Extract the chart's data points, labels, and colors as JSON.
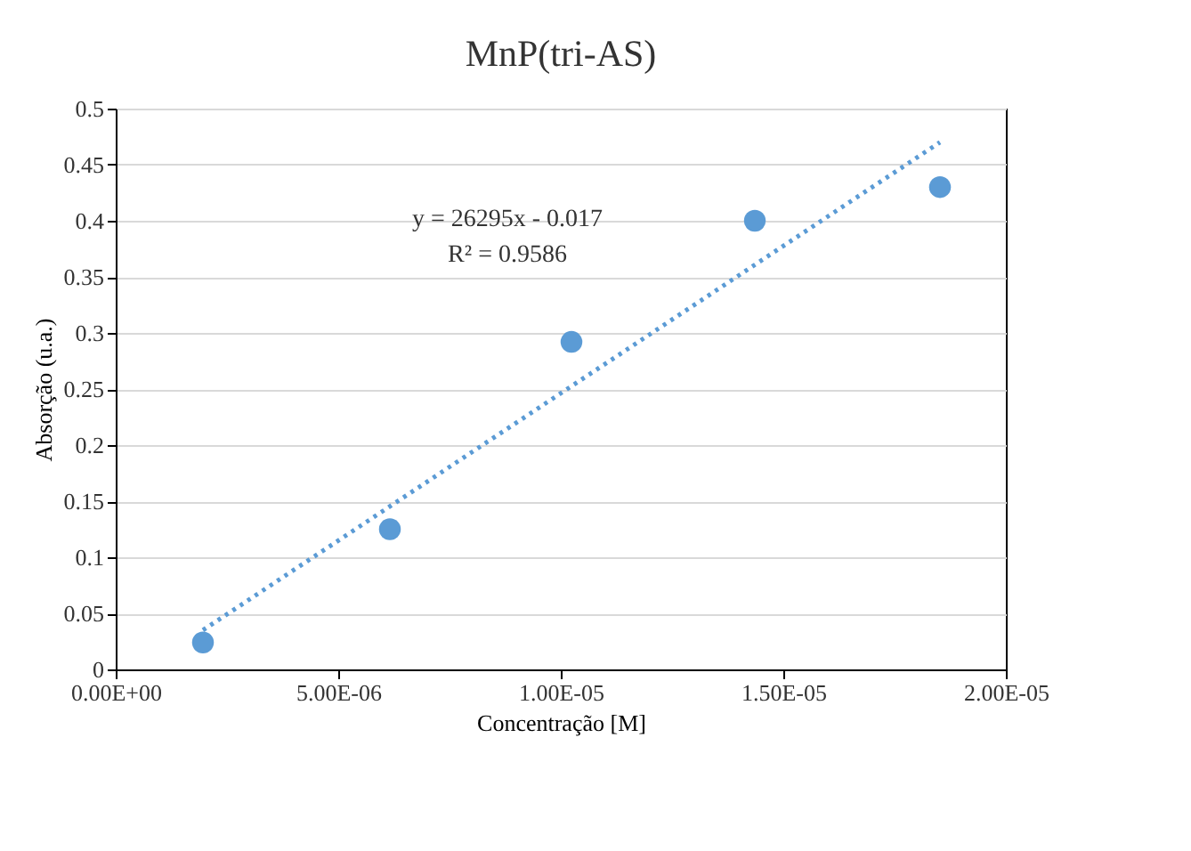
{
  "chart_data": {
    "type": "scatter",
    "title": "MnP(tri-AS)",
    "xlabel": "Concentração  [M]",
    "ylabel": "Absorção  (u.a.)",
    "x": [
      1.96e-06,
      6.16e-06,
      1.024e-05,
      1.436e-05,
      1.852e-05
    ],
    "series": [
      {
        "color": "#5b9bd5",
        "marker": "circle",
        "values": [
          0.024,
          0.125,
          0.292,
          0.4,
          0.43
        ]
      },
      {
        "type": "line",
        "color": "#5b9bd5",
        "line_style": "dotted",
        "x": [
          1.96e-06,
          1.852e-05
        ],
        "values": [
          0.035,
          0.47
        ]
      }
    ],
    "xlim": [
      0,
      2e-05
    ],
    "xticks": [
      {
        "value": 0,
        "label": "0.00E+00"
      },
      {
        "value": 5e-06,
        "label": "5.00E-06"
      },
      {
        "value": 1e-05,
        "label": "1.00E-05"
      },
      {
        "value": 1.5e-05,
        "label": "1.50E-05"
      },
      {
        "value": 2e-05,
        "label": "2.00E-05"
      }
    ],
    "ylim": [
      0,
      0.5
    ],
    "yticks": [
      0,
      0.05,
      0.1,
      0.15,
      0.2,
      0.25,
      0.3,
      0.35,
      0.4,
      0.45,
      0.5
    ],
    "grid": "y",
    "annotations": [
      "y = 26295x - 0.017",
      "R² = 0.9586"
    ]
  }
}
